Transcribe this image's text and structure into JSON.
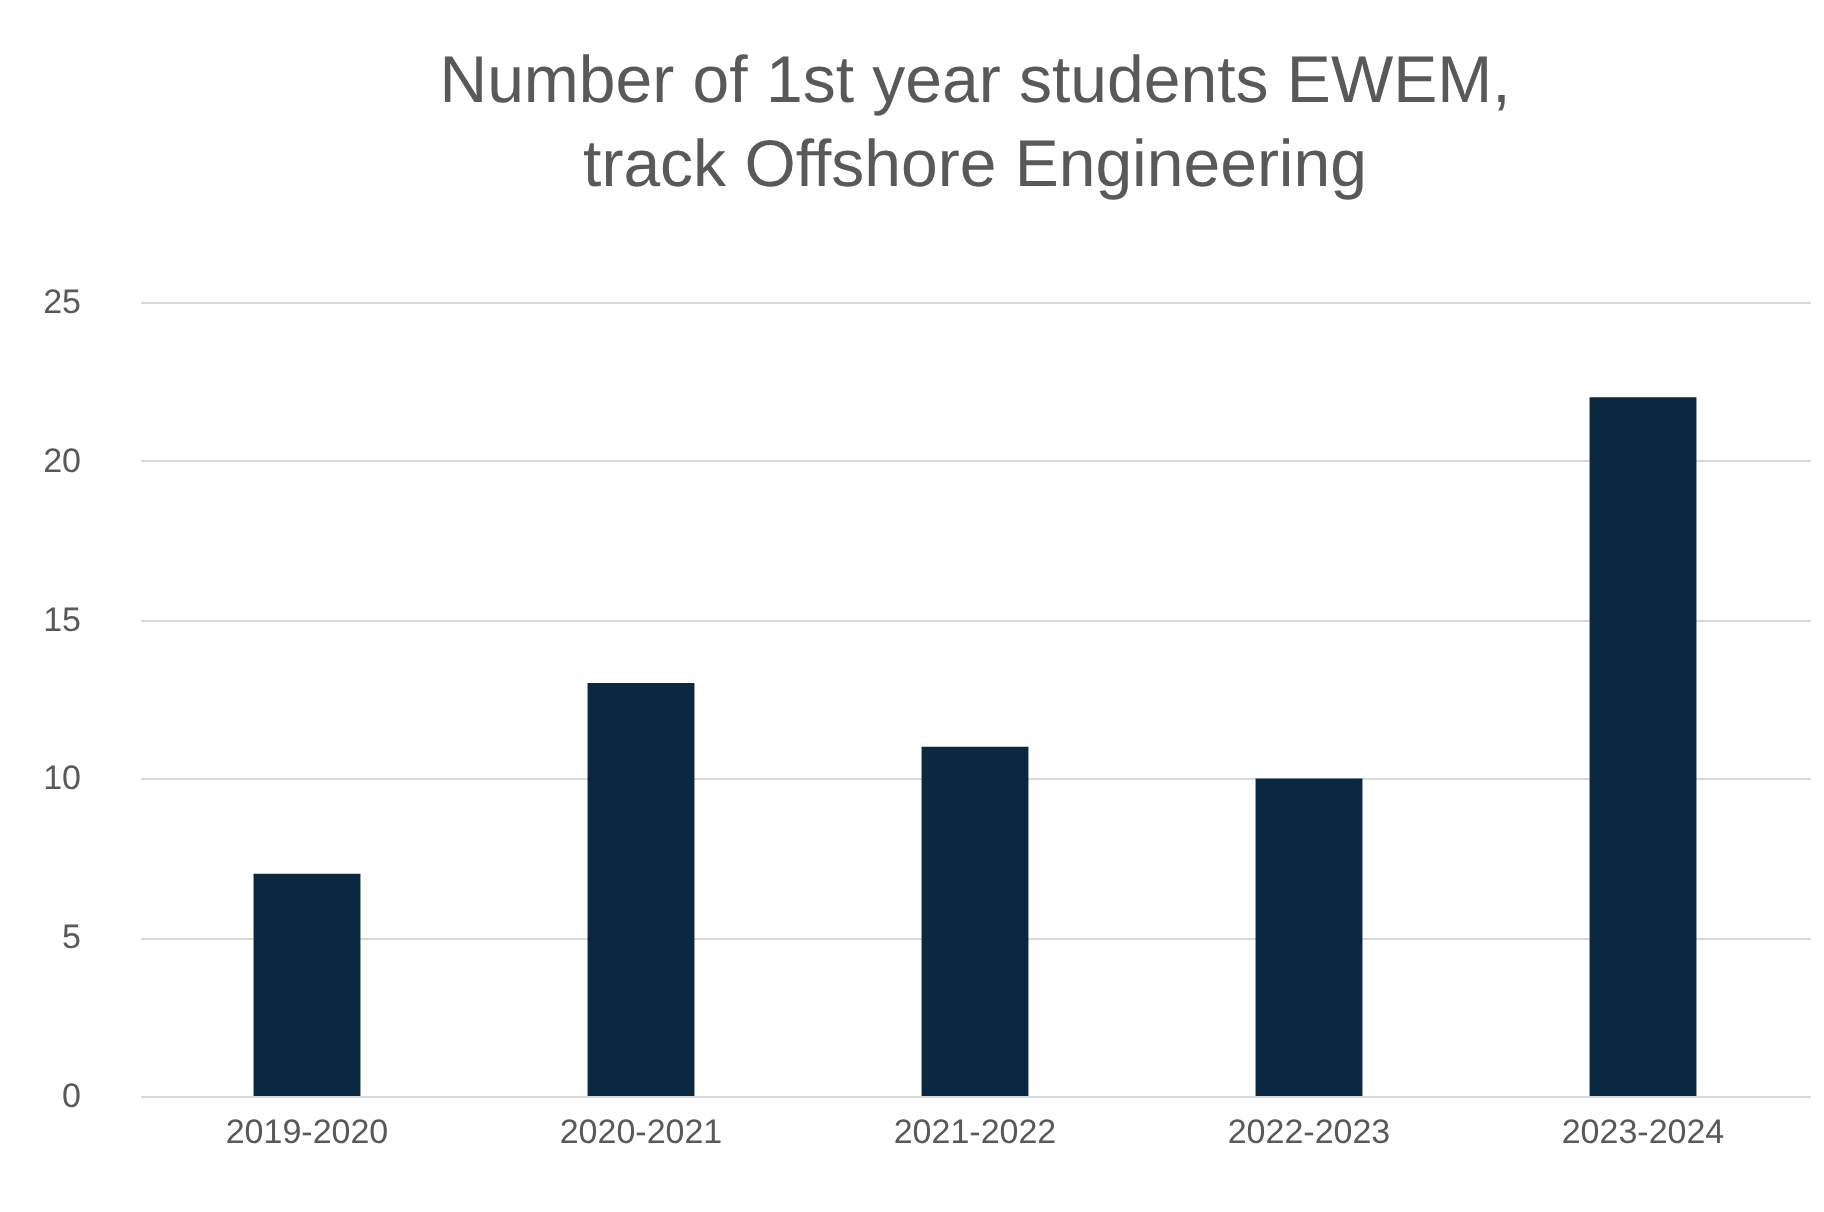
{
  "chart_data": {
    "type": "bar",
    "title": "Number of 1st year students EWEM, track Offshore Engineering",
    "categories": [
      "2019-2020",
      "2020-2021",
      "2021-2022",
      "2022-2023",
      "2023-2024"
    ],
    "values": [
      7,
      13,
      11,
      10,
      22
    ],
    "color": "#0b2841",
    "ylim": [
      0,
      25
    ],
    "yticks": [
      0,
      5,
      10,
      15,
      20,
      25
    ],
    "grid": "y"
  }
}
